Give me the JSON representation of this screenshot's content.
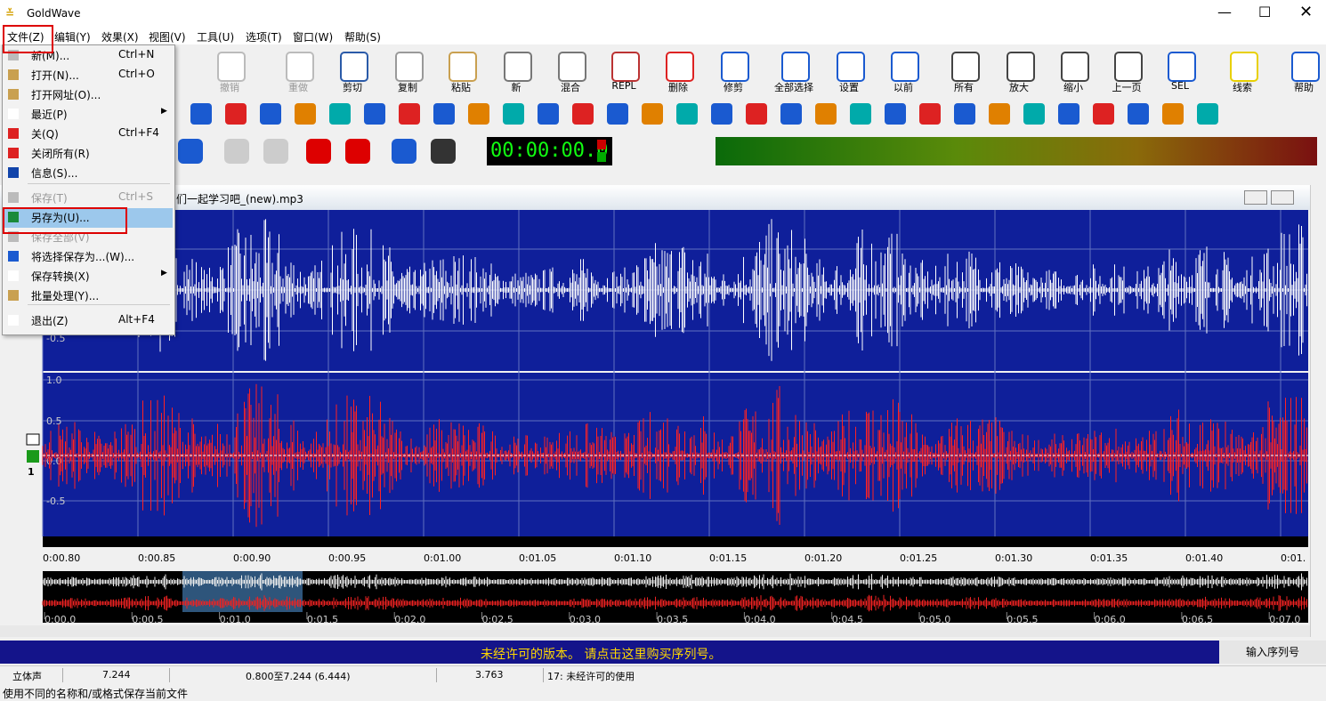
{
  "window": {
    "title": "GoldWave"
  },
  "menu": [
    "文件(Z)",
    "编辑(Y)",
    "效果(X)",
    "视图(V)",
    "工具(U)",
    "选项(T)",
    "窗口(W)",
    "帮助(S)"
  ],
  "toolbar": [
    "撤销",
    "重做",
    "剪切",
    "复制",
    "粘贴",
    "新",
    "混合",
    "REPL",
    "删除",
    "修剪",
    "全部选择",
    "设置",
    "以前",
    "所有",
    "放大",
    "缩小",
    "上一页",
    "SEL",
    "线索",
    "帮助"
  ],
  "time_display": "00:00:00.0",
  "file_menu": [
    {
      "label": "新(M)...",
      "shortcut": "Ctrl+N"
    },
    {
      "label": "打开(N)...",
      "shortcut": "Ctrl+O"
    },
    {
      "label": "打开网址(O)..."
    },
    {
      "label": "最近(P)"
    },
    {
      "label": "关(Q)",
      "shortcut": "Ctrl+F4"
    },
    {
      "label": "关闭所有(R)"
    },
    {
      "label": "信息(S)..."
    },
    {
      "label": "保存(T)",
      "shortcut": "Ctrl+S"
    },
    {
      "label": "另存为(U)..."
    },
    {
      "label": "保存全部(V)"
    },
    {
      "label": "将选择保存为...(W)..."
    },
    {
      "label": "保存转换(X)"
    },
    {
      "label": "批量处理(Y)..."
    },
    {
      "label": "退出(Z)",
      "shortcut": "Alt+F4"
    }
  ],
  "document": {
    "title": "们一起学习吧_(new).mp3",
    "channel_number": "1",
    "top_channel_labels": [
      "-0.5"
    ],
    "bottom_channel_labels": [
      "1.0",
      "0.5",
      "0.0",
      "-0.5"
    ],
    "time_labels": [
      "0:00.80",
      "0:00.85",
      "0:00.90",
      "0:00.95",
      "0:01.00",
      "0:01.05",
      "0:01.10",
      "0:01.15",
      "0:01.20",
      "0:01.25",
      "0:01.30",
      "0:01.35",
      "0:01.40",
      "0:01."
    ],
    "overview_labels": [
      "0:00.0",
      "0:00.5",
      "0:01.0",
      "0:01.5",
      "0:02.0",
      "0:02.5",
      "0:03.0",
      "0:03.5",
      "0:04.0",
      "0:04.5",
      "0:05.0",
      "0:05.5",
      "0:06.0",
      "0:06.5",
      "0:07.0"
    ]
  },
  "banner": {
    "message": "未经许可的版本。 请点击这里购买序列号。",
    "button": "输入序列号"
  },
  "status": [
    "立体声",
    "7.244",
    "0.800至7.244 (6.444)",
    "3.763",
    "17: 未经许可的使用"
  ],
  "hint": "使用不同的名称和/或格式保存当前文件"
}
